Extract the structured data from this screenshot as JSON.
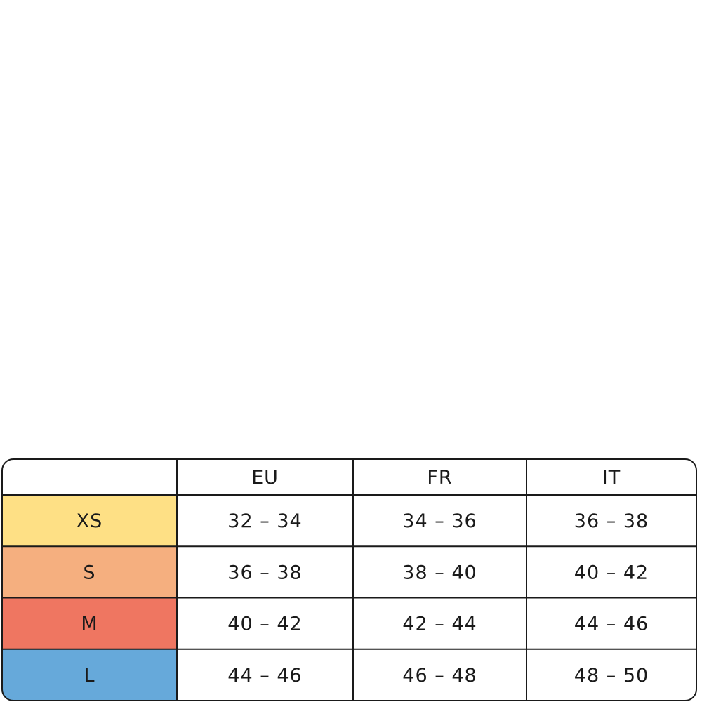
{
  "table": {
    "columns": [
      "EU",
      "FR",
      "IT"
    ],
    "rows": [
      {
        "size": "XS",
        "color": "#fee085",
        "cells": [
          "32 – 34",
          "34 – 36",
          "36 – 38"
        ]
      },
      {
        "size": "S",
        "color": "#f5af7f",
        "cells": [
          "36 – 38",
          "38 – 40",
          "40 – 42"
        ]
      },
      {
        "size": "M",
        "color": "#ef7661",
        "cells": [
          "40 – 42",
          "42 – 44",
          "44 – 46"
        ]
      },
      {
        "size": "L",
        "color": "#66a9da",
        "cells": [
          "44 – 46",
          "46 – 48",
          "48 – 50"
        ]
      }
    ]
  }
}
